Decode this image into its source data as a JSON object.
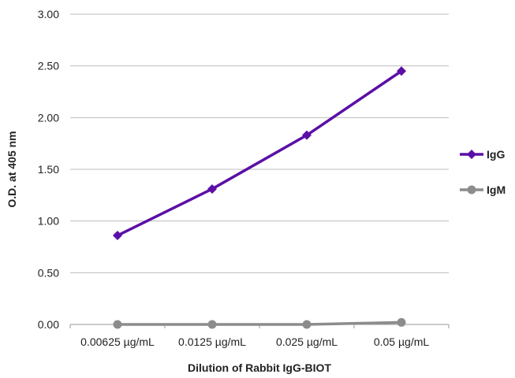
{
  "chart_data": {
    "type": "line",
    "title": "",
    "xlabel": "Dilution of Rabbit IgG-BIOT",
    "ylabel": "O.D. at 405 nm",
    "categories": [
      "0.00625 µg/mL",
      "0.0125 µg/mL",
      "0.025 µg/mL",
      "0.05 µg/mL"
    ],
    "ylim": [
      0,
      3
    ],
    "yticks": [
      "0.00",
      "0.50",
      "1.00",
      "1.50",
      "2.00",
      "2.50",
      "3.00"
    ],
    "grid": true,
    "legend_position": "right",
    "series": [
      {
        "name": "IgG",
        "values": [
          0.86,
          1.31,
          1.83,
          2.45
        ],
        "color": "#5B0FA6",
        "marker": "diamond"
      },
      {
        "name": "IgM",
        "values": [
          0.0,
          0.0,
          0.0,
          0.02
        ],
        "color": "#8C8C8C",
        "marker": "circle"
      }
    ]
  }
}
